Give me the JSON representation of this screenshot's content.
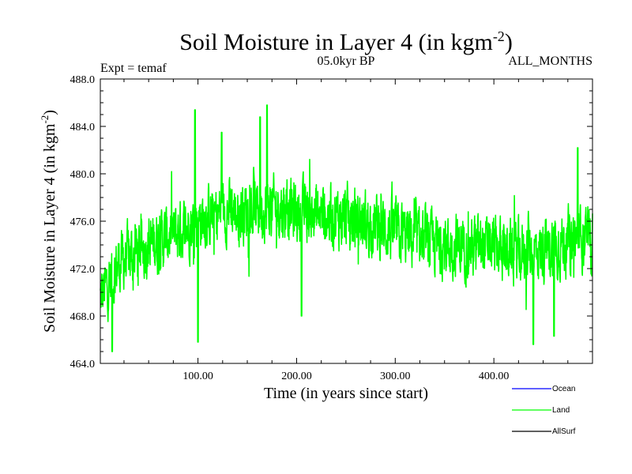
{
  "chart_data": {
    "type": "line",
    "title_main": "Soil Moisture in Layer 4 (in kgm",
    "title_sup": "-2",
    "title_close": ")",
    "subtitle_left": "Expt = temaf",
    "subtitle_center": "05.0kyr BP",
    "subtitle_right": "ALL_MONTHS",
    "xlabel": "Time (in years since start)",
    "ylabel_main": "Soil Moisture in Layer 4 (in kgm",
    "ylabel_sup": "-2",
    "ylabel_close": ")",
    "xlim": [
      1,
      500
    ],
    "ylim": [
      464.0,
      488.0
    ],
    "xticks": [
      100,
      200,
      300,
      400
    ],
    "xtick_labels": [
      "100.00",
      "200.00",
      "300.00",
      "400.00"
    ],
    "yticks": [
      464,
      468,
      472,
      476,
      480,
      484,
      488
    ],
    "ytick_labels": [
      "464.0",
      "468.0",
      "472.0",
      "476.0",
      "480.0",
      "484.0",
      "488.0"
    ],
    "series": [
      {
        "name": "Ocean",
        "color": "#0000ff",
        "values": []
      },
      {
        "name": "Land",
        "color": "#00ff00",
        "trend_x": [
          1,
          20,
          50,
          80,
          100,
          130,
          160,
          180,
          200,
          230,
          260,
          300,
          340,
          380,
          420,
          450,
          480,
          500
        ],
        "trend_y": [
          469.5,
          472.5,
          474.0,
          475.0,
          476.2,
          476.8,
          477.0,
          477.2,
          476.8,
          476.5,
          476.2,
          475.0,
          474.0,
          473.8,
          473.5,
          473.5,
          474.5,
          474.5
        ],
        "noise_amplitude": 2.5,
        "peaks": [
          {
            "x": 97,
            "y": 485.4
          },
          {
            "x": 170,
            "y": 485.8
          },
          {
            "x": 163,
            "y": 484.8
          },
          {
            "x": 124,
            "y": 483.5
          },
          {
            "x": 485,
            "y": 482.2
          }
        ],
        "troughs": [
          {
            "x": 13,
            "y": 465.0
          },
          {
            "x": 100,
            "y": 465.8
          },
          {
            "x": 440,
            "y": 465.6
          },
          {
            "x": 461,
            "y": 466.3
          },
          {
            "x": 205,
            "y": 468.0
          }
        ]
      },
      {
        "name": "AllSurf",
        "color": "#000000",
        "values": []
      }
    ],
    "legend": [
      {
        "name": "Ocean",
        "color": "#0000ff"
      },
      {
        "name": "Land",
        "color": "#00ff00"
      },
      {
        "name": "AllSurf",
        "color": "#000000"
      }
    ],
    "legend_position": "bottom-right"
  }
}
